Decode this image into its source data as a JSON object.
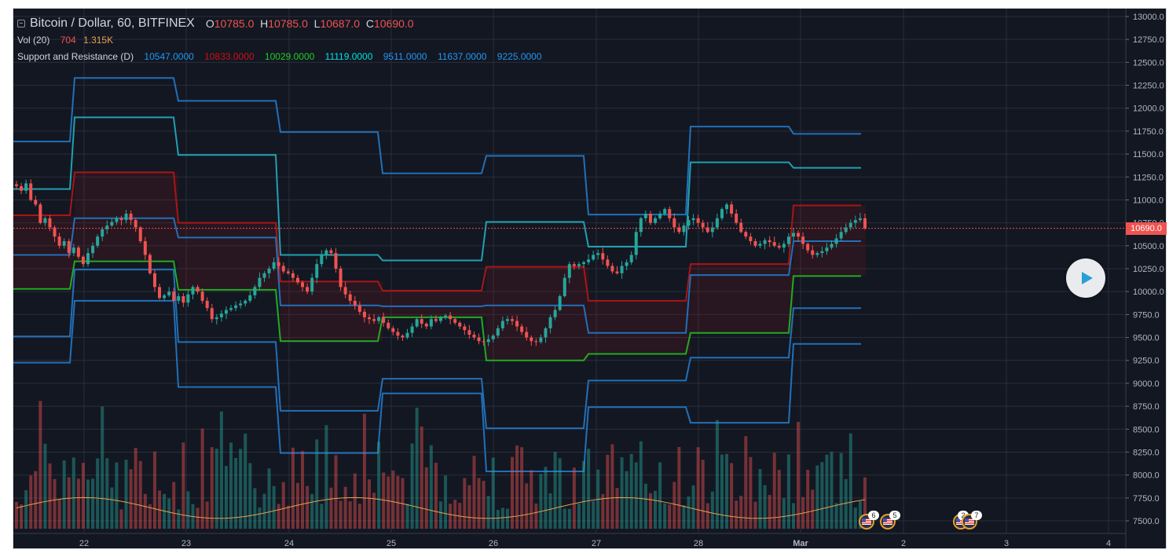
{
  "header": {
    "symbol_title": "Bitcoin / Dollar, 60, BITFINEX",
    "ohlc": [
      {
        "key": "O",
        "value": "10785.0"
      },
      {
        "key": "H",
        "value": "10785.0"
      },
      {
        "key": "L",
        "value": "10687.0"
      },
      {
        "key": "C",
        "value": "10690.0"
      }
    ]
  },
  "volume": {
    "label": "Vol (20)",
    "value": "704",
    "ma_value": "1.315K"
  },
  "support_resistance": {
    "label": "Support and Resistance (D)",
    "levels": [
      {
        "value": "10547.0000",
        "color": "#2196f3"
      },
      {
        "value": "10833.0000",
        "color": "#cc1111"
      },
      {
        "value": "10029.0000",
        "color": "#22cc22"
      },
      {
        "value": "11119.0000",
        "color": "#00e0e0"
      },
      {
        "value": "9511.0000",
        "color": "#2196f3"
      },
      {
        "value": "11637.0000",
        "color": "#2196f3"
      },
      {
        "value": "9225.0000",
        "color": "#2196f3"
      }
    ]
  },
  "price_scale": {
    "ticks": [
      "13000.0",
      "12750.0",
      "12500.0",
      "12250.0",
      "12000.0",
      "11750.0",
      "11500.0",
      "11250.0",
      "11000.0",
      "10750.0",
      "10500.0",
      "10250.0",
      "10000.0",
      "9750.0",
      "9500.0",
      "9250.0",
      "9000.0",
      "8750.0",
      "8500.0",
      "8250.0",
      "8000.0",
      "7750.0",
      "7500.0"
    ],
    "last_price_label": "10690.0"
  },
  "time_scale": {
    "ticks": [
      "22",
      "23",
      "24",
      "25",
      "26",
      "27",
      "28",
      "Mar",
      "2",
      "3",
      "4"
    ]
  },
  "events": [
    {
      "count": "6"
    },
    {
      "count": "5"
    },
    {
      "count": "2"
    },
    {
      "count": "7"
    }
  ],
  "colors": {
    "background": "#131722",
    "up": "#26a69a",
    "down": "#ef5350",
    "grid": "#2a2e39",
    "support": "#22aa22",
    "resistance": "#aa1515",
    "outer_blue": "#2170b8",
    "teal": "#20a0b0",
    "volume_ma": "#e8a050"
  },
  "chart_data": {
    "type": "candlestick",
    "y_range": [
      7400,
      13050
    ],
    "last_price": 10690,
    "segments": [
      {
        "day": "21",
        "r1": 10833,
        "s1": 10029,
        "pp": 10400,
        "r2": 11119,
        "s2": 9511,
        "r3": 11637,
        "s3": 9225
      },
      {
        "day": "22",
        "r1": 11300,
        "s1": 10330,
        "pp": 10800,
        "r2": 11900,
        "s2": 10240,
        "r3": 12330,
        "s3": 9900
      },
      {
        "day": "23",
        "r1": 10750,
        "s1": 10020,
        "pp": 10590,
        "r2": 11490,
        "s2": 9450,
        "r3": 12080,
        "s3": 8960
      },
      {
        "day": "24",
        "r1": 10110,
        "s1": 9460,
        "pp": 9850,
        "r2": 10400,
        "s2": 8700,
        "r3": 11740,
        "s3": 8240
      },
      {
        "day": "25",
        "r1": 10010,
        "s1": 9720,
        "pp": 9840,
        "r2": 10340,
        "s2": 9050,
        "r3": 11290,
        "s3": 8890
      },
      {
        "day": "26",
        "r1": 10270,
        "s1": 9250,
        "pp": 9850,
        "r2": 10760,
        "s2": 8510,
        "r3": 11480,
        "s3": 8040
      },
      {
        "day": "27",
        "r1": 9900,
        "s1": 9320,
        "pp": 9550,
        "r2": 10490,
        "s2": 9030,
        "r3": 10840,
        "s3": 8740
      },
      {
        "day": "28",
        "r1": 10300,
        "s1": 9550,
        "pp": 10180,
        "r2": 11410,
        "s2": 9280,
        "r3": 11800,
        "s3": 8570
      },
      {
        "day": "Mar",
        "r1": 10940,
        "s1": 10170,
        "pp": 10550,
        "r2": 11350,
        "s2": 9820,
        "r3": 11720,
        "s3": 9430
      }
    ],
    "candles": [
      11150,
      11100,
      11180,
      11000,
      10950,
      10750,
      10800,
      10700,
      10600,
      10500,
      10550,
      10420,
      10480,
      10380,
      10300,
      10420,
      10500,
      10600,
      10680,
      10720,
      10760,
      10800,
      10780,
      10850,
      10780,
      10700,
      10550,
      10400,
      10200,
      10050,
      9930,
      9960,
      10000,
      9900,
      9950,
      9880,
      9970,
      10050,
      10000,
      9900,
      9820,
      9700,
      9720,
      9760,
      9800,
      9820,
      9850,
      9870,
      9900,
      9960,
      10050,
      10150,
      10200,
      10250,
      10320,
      10280,
      10220,
      10200,
      10150,
      10100,
      10050,
      10000,
      10150,
      10300,
      10400,
      10450,
      10420,
      10250,
      10050,
      9970,
      9900,
      9850,
      9780,
      9720,
      9700,
      9680,
      9720,
      9660,
      9600,
      9560,
      9520,
      9500,
      9550,
      9620,
      9700,
      9650,
      9620,
      9700,
      9680,
      9720,
      9740,
      9700,
      9660,
      9620,
      9580,
      9530,
      9500,
      9460,
      9450,
      9480,
      9520,
      9600,
      9680,
      9700,
      9680,
      9620,
      9560,
      9500,
      9460,
      9450,
      9500,
      9600,
      9720,
      9800,
      9950,
      10150,
      10300,
      10280,
      10300,
      10320,
      10350,
      10400,
      10420,
      10350,
      10280,
      10220,
      10200,
      10280,
      10320,
      10400,
      10650,
      10800,
      10850,
      10750,
      10800,
      10850,
      10900,
      10800,
      10700,
      10650,
      10720,
      10780,
      10800,
      10750,
      10700,
      10650,
      10700,
      10800,
      10900,
      10950,
      10850,
      10750,
      10650,
      10600,
      10550,
      10500,
      10520,
      10560,
      10540,
      10500,
      10480,
      10520,
      10600,
      10640,
      10600,
      10520,
      10450,
      10400,
      10420,
      10440,
      10480,
      10520,
      10580,
      10650,
      10700,
      10750,
      10780,
      10800,
      10690
    ],
    "volume_range": [
      0,
      20000
    ],
    "volume_ma_avg": 3600
  }
}
